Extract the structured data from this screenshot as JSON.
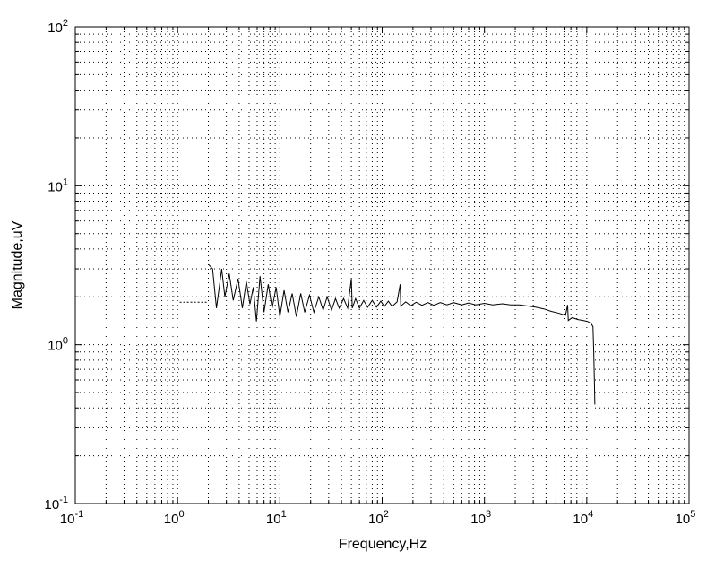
{
  "chart_data": {
    "type": "line",
    "title": "",
    "xlabel": "Frequency,Hz",
    "ylabel": "Magnitude,uV",
    "xscale": "log",
    "yscale": "log",
    "xlim": [
      0.1,
      100000
    ],
    "ylim": [
      0.1,
      100
    ],
    "grid": true,
    "grid_style": "dotted",
    "legend": "none",
    "line_color": "#000000",
    "x_ticks": [
      {
        "base": "10",
        "exp": "-1"
      },
      {
        "base": "10",
        "exp": "0"
      },
      {
        "base": "10",
        "exp": "1"
      },
      {
        "base": "10",
        "exp": "2"
      },
      {
        "base": "10",
        "exp": "3"
      },
      {
        "base": "10",
        "exp": "4"
      },
      {
        "base": "10",
        "exp": "5"
      }
    ],
    "y_ticks": [
      {
        "base": "10",
        "exp": "-1"
      },
      {
        "base": "10",
        "exp": "0"
      },
      {
        "base": "10",
        "exp": "1"
      },
      {
        "base": "10",
        "exp": "2"
      }
    ],
    "dc_segment": {
      "x": [
        1.05,
        2.0
      ],
      "y": [
        1.85,
        1.85
      ],
      "style": "dotted"
    },
    "series": [
      {
        "values_xy": [
          [
            2.0,
            3.2
          ],
          [
            2.2,
            3.0
          ],
          [
            2.4,
            1.7
          ],
          [
            2.7,
            3.0
          ],
          [
            2.9,
            2.0
          ],
          [
            3.2,
            2.8
          ],
          [
            3.5,
            1.9
          ],
          [
            3.9,
            2.6
          ],
          [
            4.3,
            1.7
          ],
          [
            4.7,
            2.5
          ],
          [
            5.1,
            1.8
          ],
          [
            5.5,
            2.3
          ],
          [
            5.9,
            1.4
          ],
          [
            6.4,
            2.7
          ],
          [
            7.0,
            1.6
          ],
          [
            7.7,
            2.4
          ],
          [
            8.4,
            1.7
          ],
          [
            9.2,
            2.3
          ],
          [
            10.0,
            1.5
          ],
          [
            11.0,
            2.2
          ],
          [
            12.0,
            1.6
          ],
          [
            13.2,
            2.1
          ],
          [
            14.5,
            1.5
          ],
          [
            16.0,
            2.1
          ],
          [
            17.5,
            1.6
          ],
          [
            19.5,
            2.05
          ],
          [
            21.5,
            1.6
          ],
          [
            24.0,
            2.0
          ],
          [
            26.5,
            1.65
          ],
          [
            29.0,
            2.0
          ],
          [
            32.0,
            1.65
          ],
          [
            35.0,
            1.95
          ],
          [
            38.0,
            1.7
          ],
          [
            42.0,
            1.95
          ],
          [
            46.0,
            1.7
          ],
          [
            50.0,
            2.6
          ],
          [
            51.0,
            1.7
          ],
          [
            55.0,
            1.95
          ],
          [
            60.0,
            1.7
          ],
          [
            66.0,
            1.9
          ],
          [
            72.0,
            1.72
          ],
          [
            80.0,
            1.9
          ],
          [
            88.0,
            1.72
          ],
          [
            97.0,
            1.88
          ],
          [
            105.0,
            1.74
          ],
          [
            115.0,
            1.88
          ],
          [
            125.0,
            1.74
          ],
          [
            140.0,
            1.86
          ],
          [
            150.0,
            2.4
          ],
          [
            152.0,
            1.75
          ],
          [
            170.0,
            1.86
          ],
          [
            190.0,
            1.76
          ],
          [
            215.0,
            1.85
          ],
          [
            245.0,
            1.77
          ],
          [
            280.0,
            1.84
          ],
          [
            320.0,
            1.77
          ],
          [
            370.0,
            1.84
          ],
          [
            430.0,
            1.78
          ],
          [
            500.0,
            1.84
          ],
          [
            600.0,
            1.78
          ],
          [
            700.0,
            1.83
          ],
          [
            820.0,
            1.78
          ],
          [
            1000.0,
            1.82
          ],
          [
            1200.0,
            1.78
          ],
          [
            1500.0,
            1.81
          ],
          [
            1800.0,
            1.78
          ],
          [
            2200.0,
            1.78
          ],
          [
            2700.0,
            1.75
          ],
          [
            3200.0,
            1.72
          ],
          [
            3800.0,
            1.68
          ],
          [
            4500.0,
            1.62
          ],
          [
            5300.0,
            1.58
          ],
          [
            6200.0,
            1.53
          ],
          [
            6500.0,
            1.78
          ],
          [
            6600.0,
            1.42
          ],
          [
            7200.0,
            1.48
          ],
          [
            8200.0,
            1.44
          ],
          [
            9200.0,
            1.42
          ],
          [
            10200.0,
            1.4
          ],
          [
            11000.0,
            1.36
          ],
          [
            11500.0,
            1.3
          ],
          [
            11700.0,
            0.9
          ],
          [
            11900.0,
            0.55
          ],
          [
            12000.0,
            0.42
          ]
        ]
      }
    ]
  }
}
